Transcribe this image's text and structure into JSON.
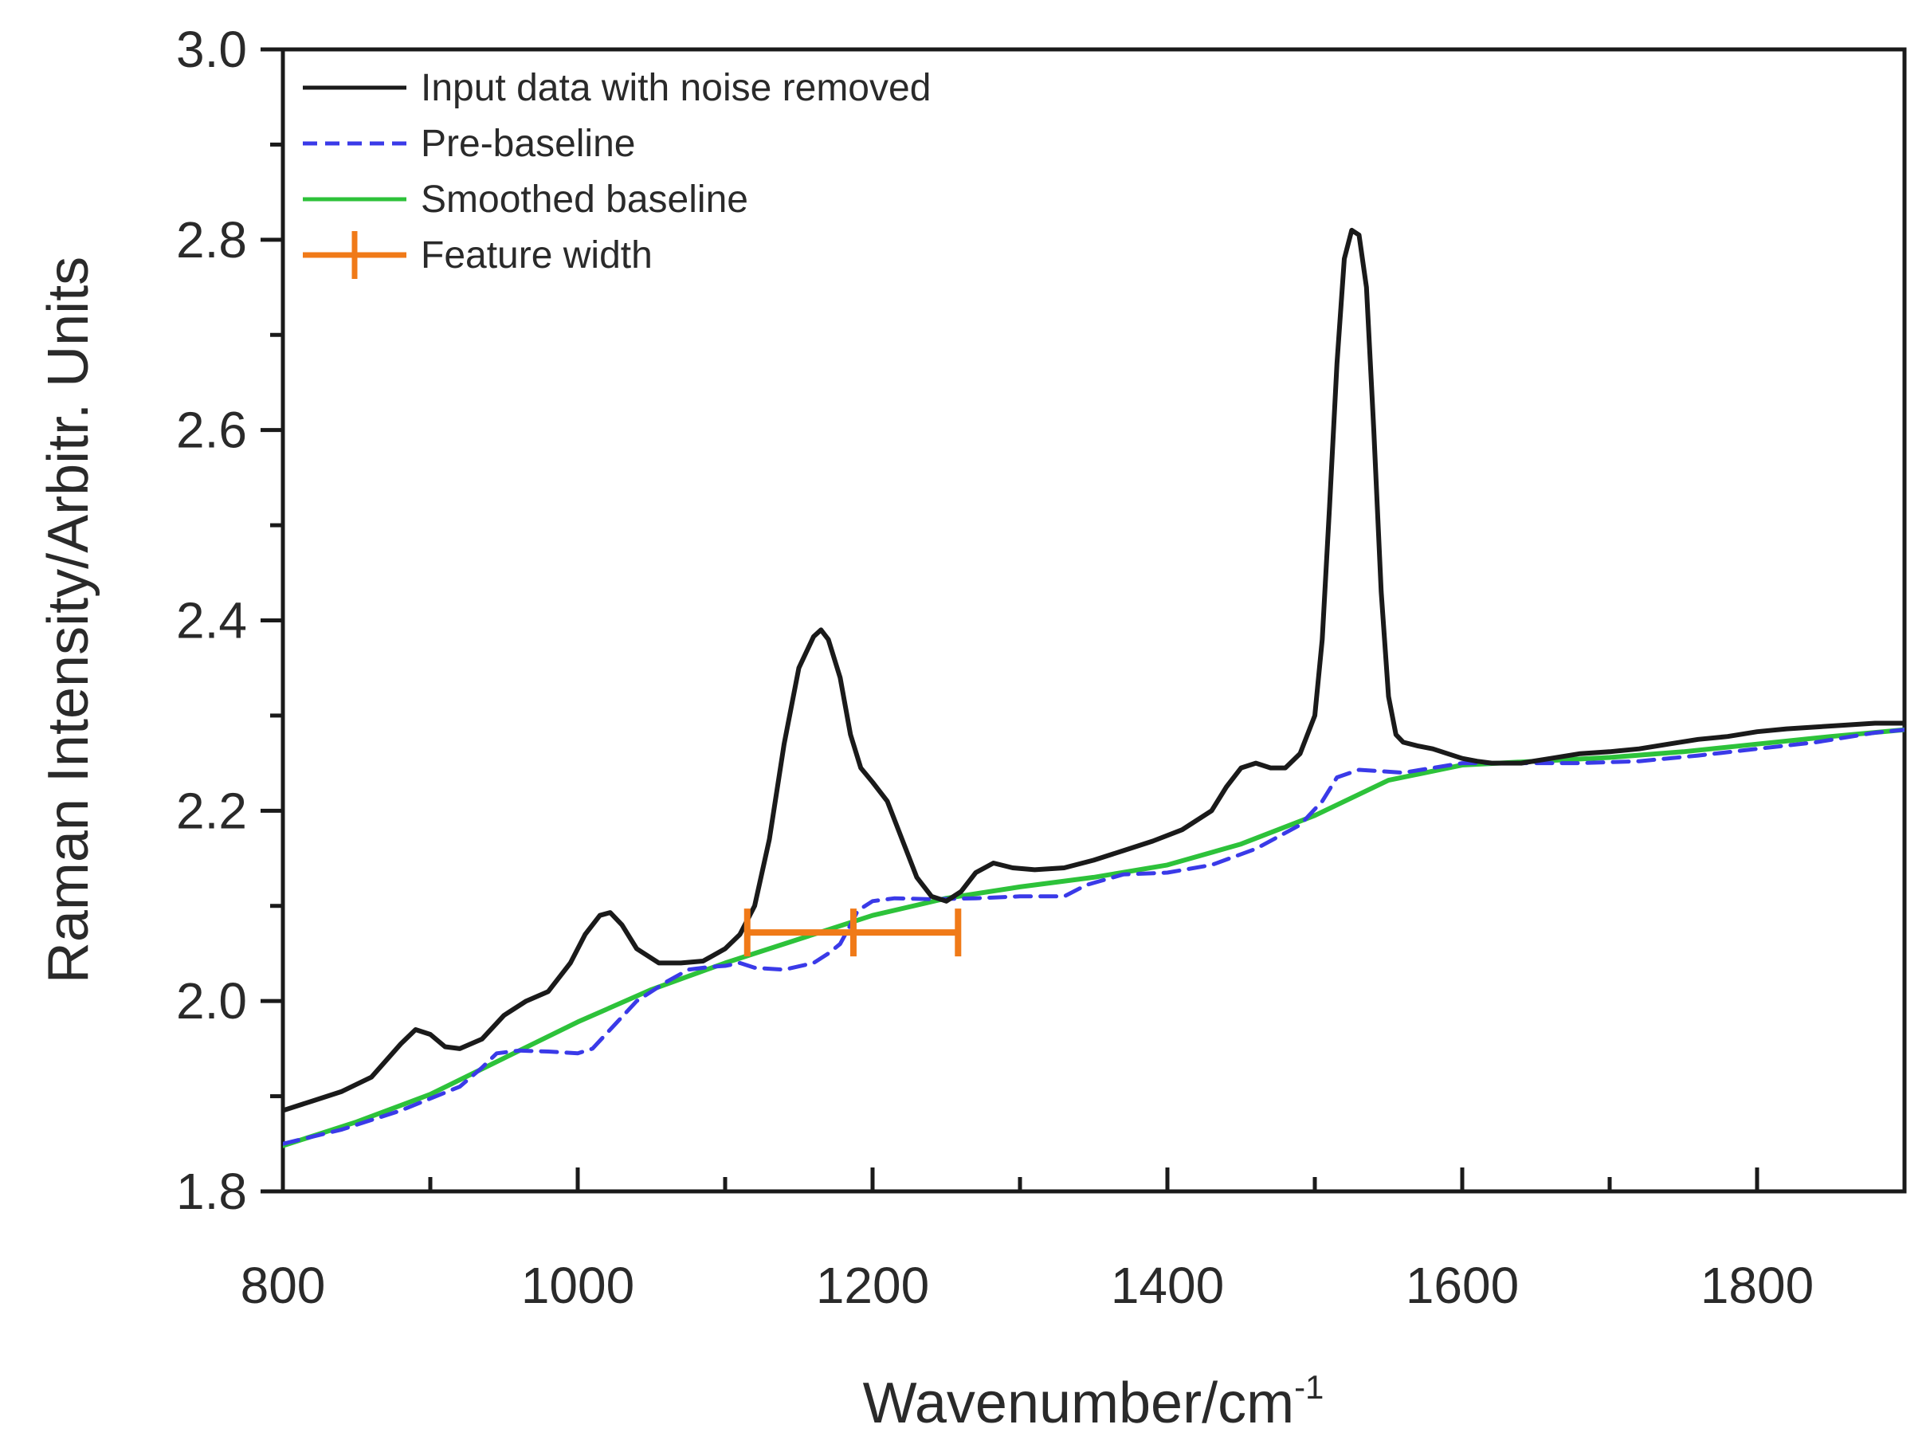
{
  "chart_data": {
    "type": "line",
    "title": "",
    "xlabel": "Wavenumber/cm",
    "xlabel_superscript": "-1",
    "ylabel": "Raman Intensity/Arbitr. Units",
    "xlim": [
      800,
      1900
    ],
    "ylim": [
      1.8,
      3.0
    ],
    "x_ticks": [
      800,
      1000,
      1200,
      1400,
      1600,
      1800
    ],
    "x_tick_labels": [
      "800",
      "1000",
      "1200",
      "1400",
      "1600",
      "1800"
    ],
    "y_ticks": [
      1.8,
      2.0,
      2.2,
      2.4,
      2.6,
      2.8,
      3.0
    ],
    "y_tick_labels": [
      "1.8",
      "2.0",
      "2.2",
      "2.4",
      "2.6",
      "2.8",
      "3.0"
    ],
    "grid": false,
    "legend_position": "top-left",
    "series": [
      {
        "name": "Input data with noise removed",
        "color": "#1a1a1a",
        "style": "solid",
        "x": [
          800,
          820,
          840,
          860,
          880,
          890,
          900,
          910,
          920,
          935,
          950,
          965,
          980,
          995,
          1005,
          1015,
          1022,
          1030,
          1040,
          1055,
          1070,
          1085,
          1100,
          1110,
          1120,
          1130,
          1140,
          1150,
          1160,
          1165,
          1170,
          1178,
          1185,
          1192,
          1200,
          1210,
          1220,
          1230,
          1240,
          1250,
          1260,
          1270,
          1282,
          1295,
          1310,
          1330,
          1350,
          1370,
          1390,
          1410,
          1430,
          1440,
          1450,
          1460,
          1470,
          1480,
          1490,
          1500,
          1505,
          1510,
          1515,
          1520,
          1525,
          1530,
          1535,
          1540,
          1545,
          1550,
          1555,
          1560,
          1570,
          1580,
          1590,
          1600,
          1610,
          1620,
          1640,
          1660,
          1680,
          1700,
          1720,
          1740,
          1760,
          1780,
          1800,
          1820,
          1840,
          1860,
          1880,
          1900
        ],
        "y": [
          1.885,
          1.895,
          1.905,
          1.92,
          1.955,
          1.97,
          1.965,
          1.952,
          1.95,
          1.96,
          1.985,
          2.0,
          2.01,
          2.04,
          2.07,
          2.09,
          2.093,
          2.08,
          2.055,
          2.04,
          2.04,
          2.042,
          2.055,
          2.07,
          2.1,
          2.17,
          2.27,
          2.35,
          2.383,
          2.39,
          2.38,
          2.34,
          2.28,
          2.245,
          2.23,
          2.21,
          2.17,
          2.13,
          2.11,
          2.105,
          2.115,
          2.135,
          2.145,
          2.14,
          2.138,
          2.14,
          2.148,
          2.158,
          2.168,
          2.18,
          2.2,
          2.225,
          2.245,
          2.25,
          2.245,
          2.245,
          2.26,
          2.3,
          2.38,
          2.52,
          2.67,
          2.78,
          2.81,
          2.805,
          2.75,
          2.6,
          2.43,
          2.32,
          2.28,
          2.272,
          2.268,
          2.265,
          2.26,
          2.255,
          2.252,
          2.25,
          2.25,
          2.255,
          2.26,
          2.262,
          2.265,
          2.27,
          2.275,
          2.278,
          2.283,
          2.286,
          2.288,
          2.29,
          2.292,
          2.292
        ]
      },
      {
        "name": "Pre-baseline",
        "color": "#3a3ae8",
        "style": "dashed",
        "x": [
          800,
          840,
          880,
          920,
          935,
          945,
          960,
          980,
          1000,
          1010,
          1025,
          1040,
          1060,
          1075,
          1090,
          1100,
          1110,
          1120,
          1140,
          1160,
          1170,
          1178,
          1185,
          1190,
          1200,
          1215,
          1240,
          1270,
          1300,
          1330,
          1345,
          1370,
          1400,
          1430,
          1460,
          1490,
          1505,
          1515,
          1530,
          1560,
          1600,
          1640,
          1680,
          1720,
          1760,
          1800,
          1840,
          1880,
          1900
        ],
        "y": [
          1.85,
          1.865,
          1.885,
          1.91,
          1.93,
          1.945,
          1.948,
          1.947,
          1.945,
          1.95,
          1.975,
          2.0,
          2.02,
          2.033,
          2.036,
          2.037,
          2.04,
          2.035,
          2.033,
          2.04,
          2.05,
          2.06,
          2.08,
          2.095,
          2.105,
          2.108,
          2.107,
          2.108,
          2.11,
          2.11,
          2.122,
          2.133,
          2.135,
          2.143,
          2.16,
          2.185,
          2.21,
          2.235,
          2.243,
          2.24,
          2.25,
          2.25,
          2.25,
          2.252,
          2.258,
          2.265,
          2.272,
          2.282,
          2.285
        ]
      },
      {
        "name": "Smoothed baseline",
        "color": "#2dc23a",
        "style": "solid",
        "x": [
          800,
          850,
          900,
          950,
          1000,
          1050,
          1100,
          1150,
          1200,
          1250,
          1300,
          1350,
          1400,
          1450,
          1500,
          1550,
          1600,
          1650,
          1700,
          1750,
          1800,
          1850,
          1900
        ],
        "y": [
          1.848,
          1.873,
          1.902,
          1.94,
          1.978,
          2.012,
          2.04,
          2.065,
          2.09,
          2.108,
          2.12,
          2.13,
          2.143,
          2.165,
          2.195,
          2.232,
          2.248,
          2.252,
          2.256,
          2.262,
          2.27,
          2.278,
          2.285
        ]
      }
    ],
    "feature_width": {
      "name": "Feature width",
      "color": "#f07a18",
      "x_start": 1115,
      "x_center": 1187,
      "x_end": 1258,
      "y": 2.072
    }
  }
}
